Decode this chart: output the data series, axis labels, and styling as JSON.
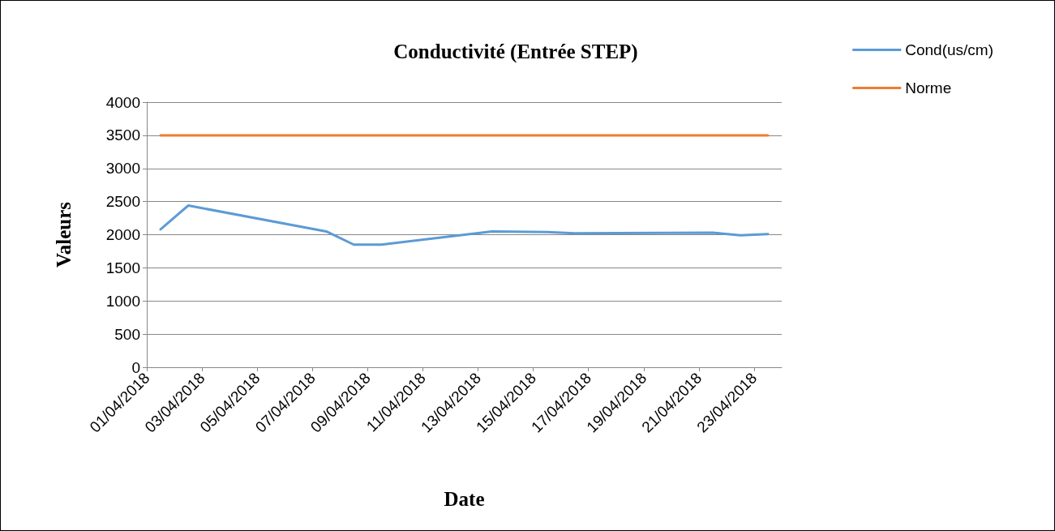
{
  "chart_data": {
    "type": "line",
    "title": "Conductivité (Entrée STEP)",
    "xlabel": "Date",
    "ylabel": "Valeurs",
    "x": [
      "2018-04-01T12:00",
      "2018-04-02T12:00",
      "2018-04-07T12:00",
      "2018-04-08T12:00",
      "2018-04-09T12:00",
      "2018-04-13T12:00",
      "2018-04-15T12:00",
      "2018-04-16T12:00",
      "2018-04-21T12:00",
      "2018-04-22T12:00",
      "2018-04-23T12:00"
    ],
    "series": [
      {
        "name": "Cond(us/cm)",
        "color": "#5b9bd5",
        "values": [
          2080,
          2440,
          2050,
          1850,
          1850,
          2050,
          2040,
          2020,
          2030,
          1990,
          2010
        ]
      },
      {
        "name": "Norme",
        "color": "#ed7d31",
        "values": [
          3500,
          3500,
          3500,
          3500,
          3500,
          3500,
          3500,
          3500,
          3500,
          3500,
          3500
        ]
      }
    ],
    "xlim": [
      "2018-04-01",
      "2018-04-24"
    ],
    "xticks": [
      {
        "value": "2018-04-01",
        "label": "01/04/2018"
      },
      {
        "value": "2018-04-03",
        "label": "03/04/2018"
      },
      {
        "value": "2018-04-05",
        "label": "05/04/2018"
      },
      {
        "value": "2018-04-07",
        "label": "07/04/2018"
      },
      {
        "value": "2018-04-09",
        "label": "09/04/2018"
      },
      {
        "value": "2018-04-11",
        "label": "11/04/2018"
      },
      {
        "value": "2018-04-13",
        "label": "13/04/2018"
      },
      {
        "value": "2018-04-15",
        "label": "15/04/2018"
      },
      {
        "value": "2018-04-17",
        "label": "17/04/2018"
      },
      {
        "value": "2018-04-19",
        "label": "19/04/2018"
      },
      {
        "value": "2018-04-21",
        "label": "21/04/2018"
      },
      {
        "value": "2018-04-23",
        "label": "23/04/2018"
      }
    ],
    "ylim": [
      0,
      4000
    ],
    "yticks": [
      0,
      500,
      1000,
      1500,
      2000,
      2500,
      3000,
      3500,
      4000
    ],
    "grid": "y",
    "legend": "top right",
    "marker": "none",
    "line_style": "solid"
  }
}
